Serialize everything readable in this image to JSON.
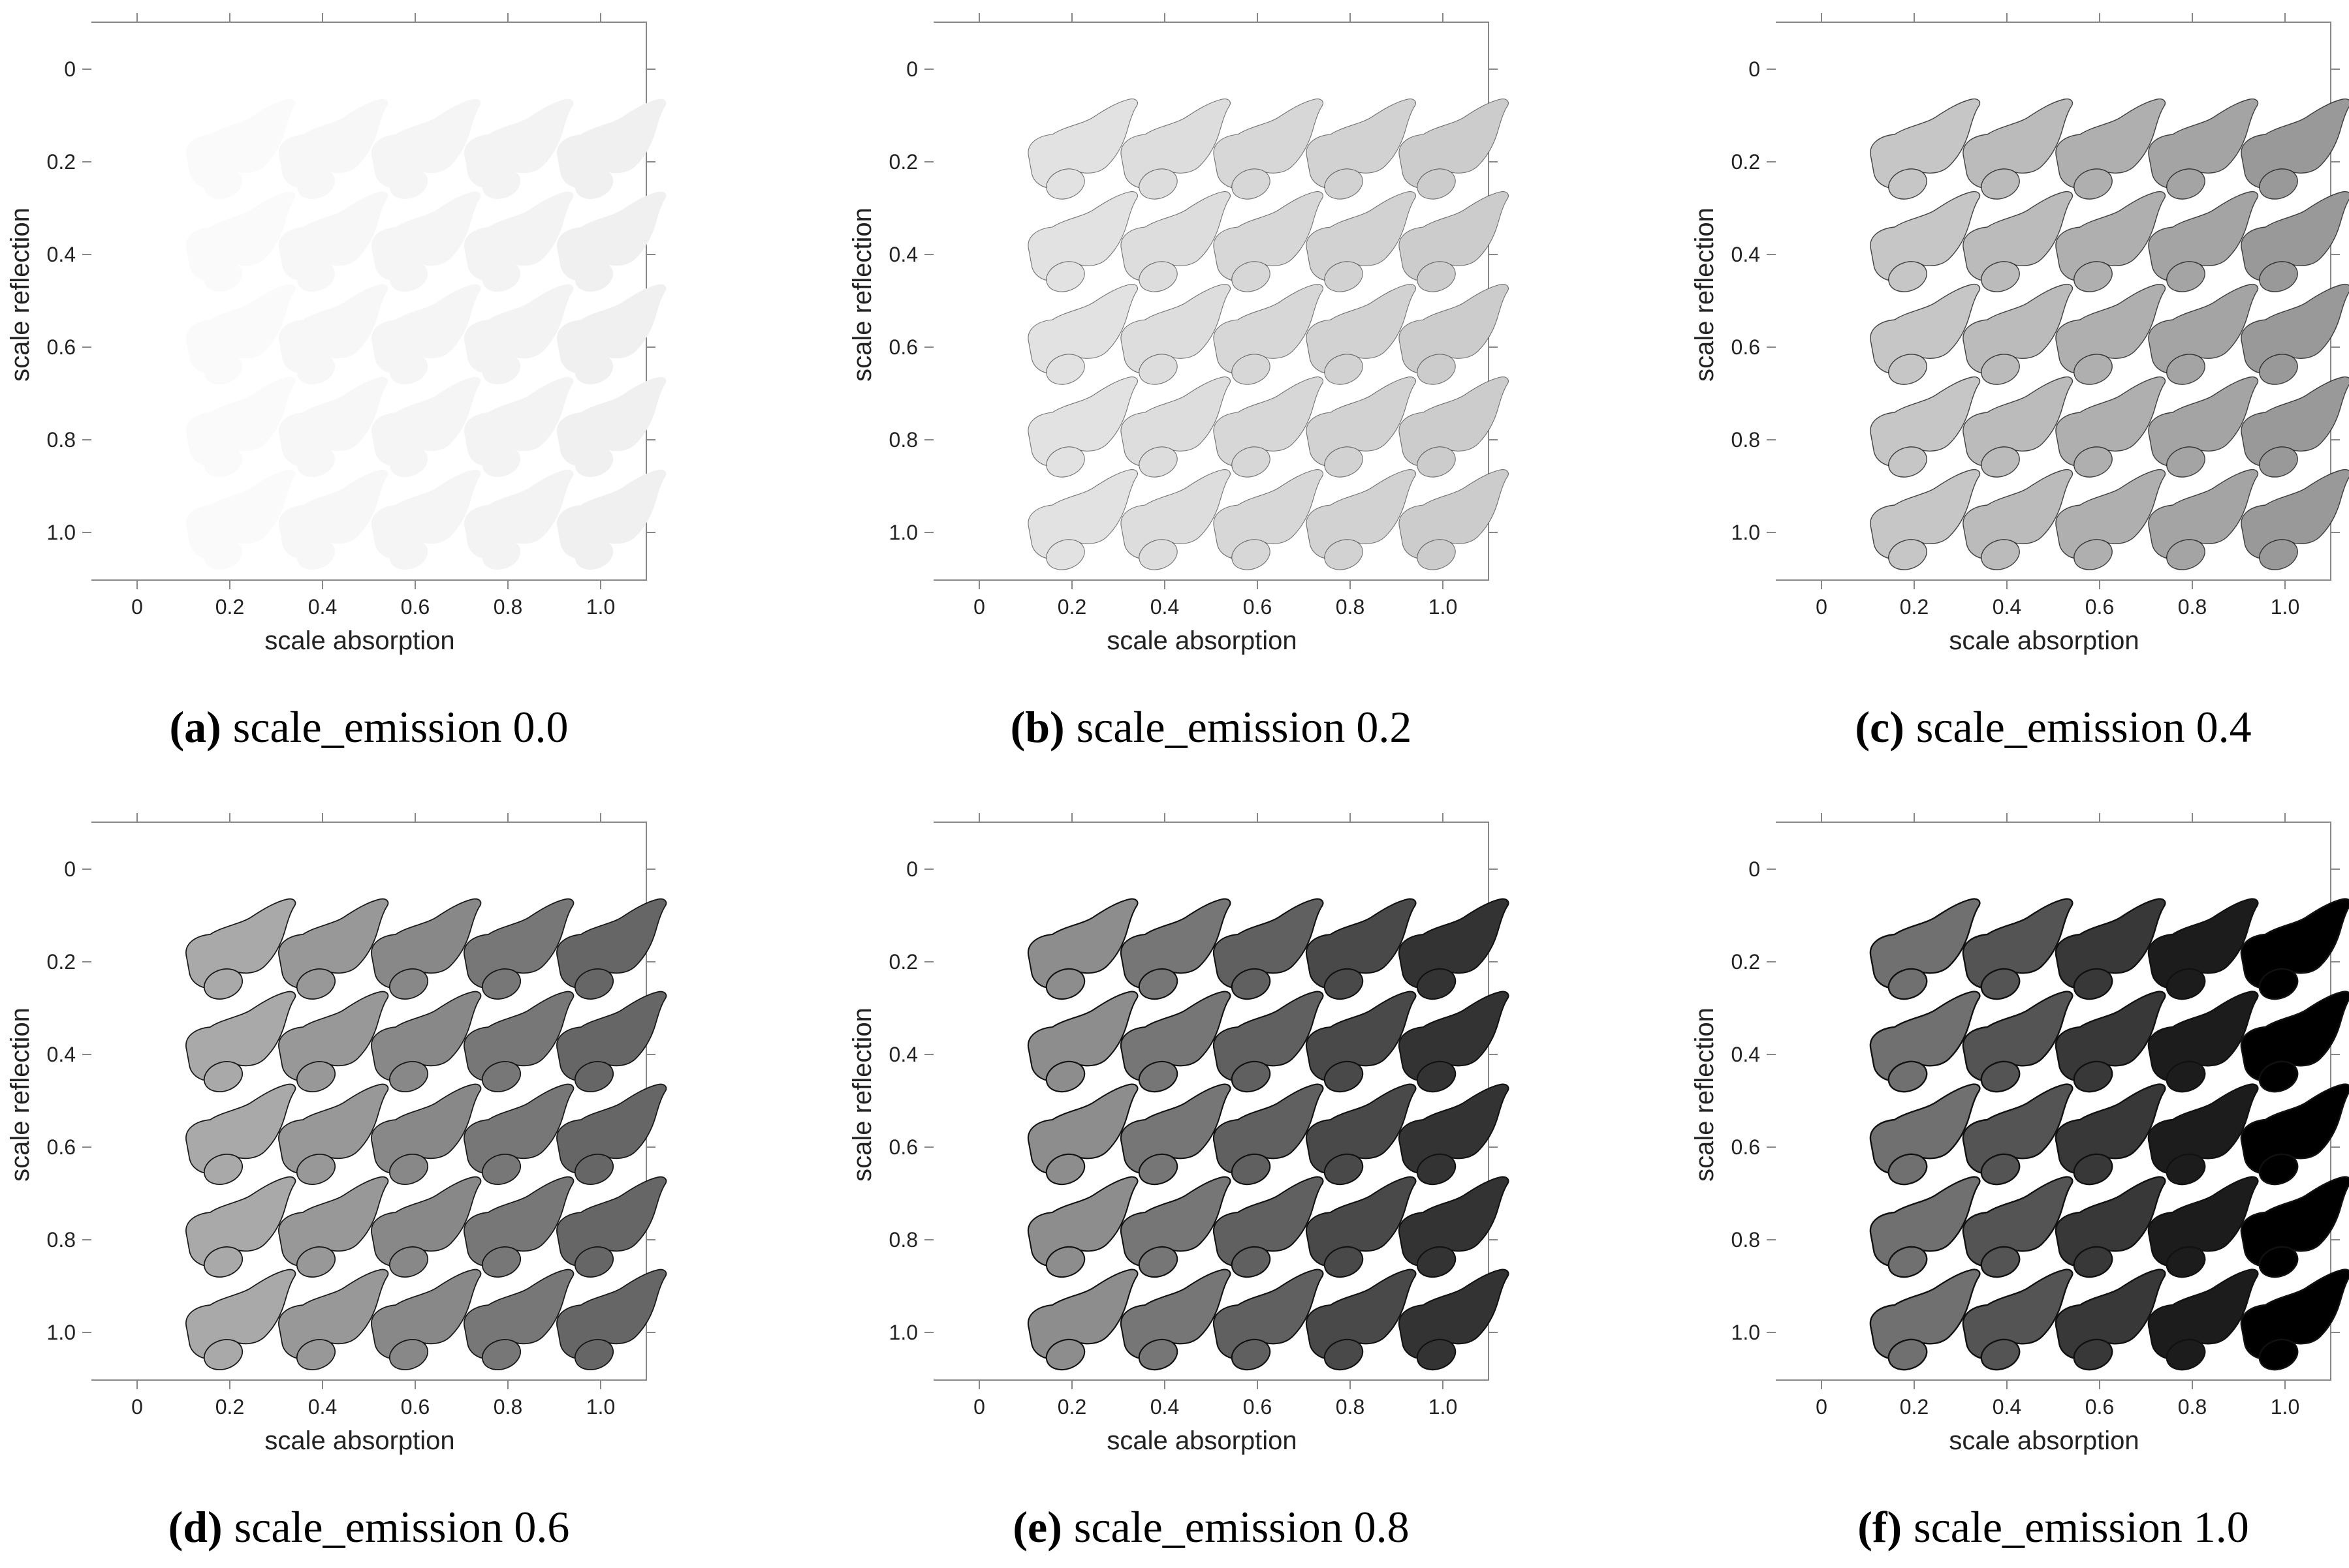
{
  "figure": {
    "panels": [
      {
        "letter": "(a)",
        "caption": "scale_emission 0.0",
        "emission": 0.0
      },
      {
        "letter": "(b)",
        "caption": "scale_emission 0.2",
        "emission": 0.2
      },
      {
        "letter": "(c)",
        "caption": "scale_emission 0.4",
        "emission": 0.4
      },
      {
        "letter": "(d)",
        "caption": "scale_emission 0.6",
        "emission": 0.6
      },
      {
        "letter": "(e)",
        "caption": "scale_emission 0.8",
        "emission": 0.8
      },
      {
        "letter": "(f)",
        "caption": "scale_emission 1.0",
        "emission": 1.0
      }
    ]
  },
  "chart_data": [
    {
      "type": "heatmap",
      "subtitle": "scale_emission 0.0",
      "xlabel": "scale absorption",
      "ylabel": "scale reflection",
      "x": [
        "0",
        "0.2",
        "0.4",
        "0.6",
        "0.8",
        "1.0"
      ],
      "y": [
        "0",
        "0.2",
        "0.4",
        "0.6",
        "0.8",
        "1.0"
      ],
      "emission": 0.0
    },
    {
      "type": "heatmap",
      "subtitle": "scale_emission 0.2",
      "xlabel": "scale absorption",
      "ylabel": "scale reflection",
      "x": [
        "0",
        "0.2",
        "0.4",
        "0.6",
        "0.8",
        "1.0"
      ],
      "y": [
        "0",
        "0.2",
        "0.4",
        "0.6",
        "0.8",
        "1.0"
      ],
      "emission": 0.2
    },
    {
      "type": "heatmap",
      "subtitle": "scale_emission 0.4",
      "xlabel": "scale absorption",
      "ylabel": "scale reflection",
      "x": [
        "0",
        "0.2",
        "0.4",
        "0.6",
        "0.8",
        "1.0"
      ],
      "y": [
        "0",
        "0.2",
        "0.4",
        "0.6",
        "0.8",
        "1.0"
      ],
      "emission": 0.4
    },
    {
      "type": "heatmap",
      "subtitle": "scale_emission 0.6",
      "xlabel": "scale absorption",
      "ylabel": "scale reflection",
      "x": [
        "0",
        "0.2",
        "0.4",
        "0.6",
        "0.8",
        "1.0"
      ],
      "y": [
        "0",
        "0.2",
        "0.4",
        "0.6",
        "0.8",
        "1.0"
      ],
      "emission": 0.6
    },
    {
      "type": "heatmap",
      "subtitle": "scale_emission 0.8",
      "xlabel": "scale absorption",
      "ylabel": "scale reflection",
      "x": [
        "0",
        "0.2",
        "0.4",
        "0.6",
        "0.8",
        "1.0"
      ],
      "y": [
        "0",
        "0.2",
        "0.4",
        "0.6",
        "0.8",
        "1.0"
      ],
      "emission": 0.8
    },
    {
      "type": "heatmap",
      "subtitle": "scale_emission 1.0",
      "xlabel": "scale absorption",
      "ylabel": "scale reflection",
      "x": [
        "0",
        "0.2",
        "0.4",
        "0.6",
        "0.8",
        "1.0"
      ],
      "y": [
        "0",
        "0.2",
        "0.4",
        "0.6",
        "0.8",
        "1.0"
      ],
      "emission": 1.0
    }
  ]
}
